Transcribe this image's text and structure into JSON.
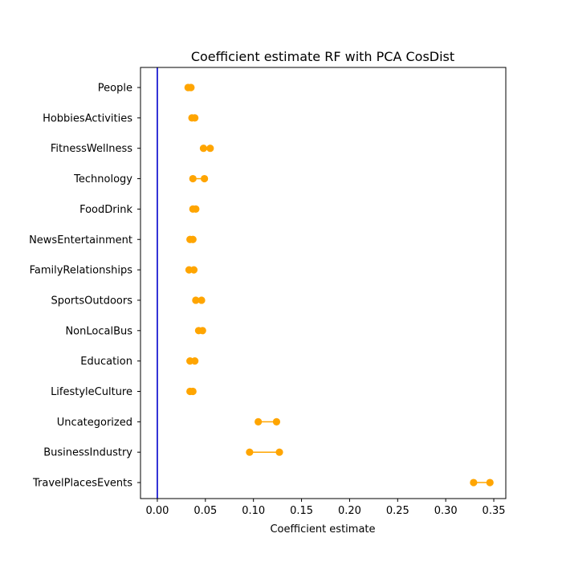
{
  "chart_data": {
    "type": "dumbbell",
    "title": "Coefficient estimate RF  with PCA CosDist",
    "xlabel": "Coefficient estimate",
    "ylabel": "",
    "xlim": [
      -0.0175,
      0.3625
    ],
    "xticks": [
      0.0,
      0.05,
      0.1,
      0.15,
      0.2,
      0.25,
      0.3,
      0.35
    ],
    "xtick_labels": [
      "0.00",
      "0.05",
      "0.10",
      "0.15",
      "0.20",
      "0.25",
      "0.30",
      "0.35"
    ],
    "reference_line_x": 0,
    "grid": false,
    "colors": {
      "marker": "#FFA500",
      "connector": "#FFA500",
      "reference_line": "#0000CC",
      "axes": "#000000"
    },
    "categories": [
      "People",
      "HobbiesActivities",
      "FitnessWellness",
      "Technology",
      "FoodDrink",
      "NewsEntertainment",
      "FamilyRelationships",
      "SportsOutdoors",
      "NonLocalBus",
      "Education",
      "LifestyleCulture",
      "Uncategorized",
      "BusinessIndustry",
      "TravelPlacesEvents"
    ],
    "low": [
      0.032,
      0.036,
      0.048,
      0.037,
      0.037,
      0.034,
      0.033,
      0.04,
      0.043,
      0.034,
      0.034,
      0.105,
      0.096,
      0.329
    ],
    "high": [
      0.035,
      0.039,
      0.055,
      0.049,
      0.04,
      0.037,
      0.038,
      0.046,
      0.047,
      0.039,
      0.037,
      0.124,
      0.127,
      0.346
    ]
  }
}
